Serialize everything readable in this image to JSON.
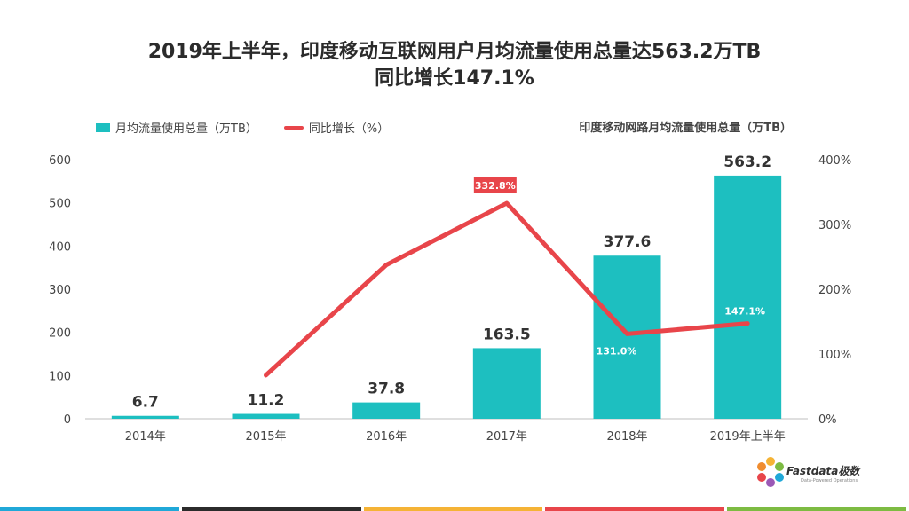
{
  "title_line1": "2019年上半年，印度移动互联网用户月均流量使用总量达563.2万TB",
  "title_line2": "同比增长147.1%",
  "subtitle": "印度移动网路月均流量使用总量（万TB）",
  "logo": {
    "name": "Fastdata极数",
    "tagline": "Data-Powered Operations"
  },
  "colors": {
    "bar": "#1dbfc0",
    "line": "#e8454a",
    "strip": [
      "#20a8d8",
      "#2b2b2b",
      "#f5b335",
      "#e8454a",
      "#7dbb42"
    ]
  },
  "chart_data": {
    "type": "bar+line",
    "categories": [
      "2014年",
      "2015年",
      "2016年",
      "2017年",
      "2018年",
      "2019年上半年"
    ],
    "series": [
      {
        "name": "月均流量使用总量（万TB）",
        "type": "bar",
        "axis": "left",
        "values": [
          6.7,
          11.2,
          37.8,
          163.5,
          377.6,
          563.2
        ],
        "labels": [
          "6.7",
          "11.2",
          "37.8",
          "163.5",
          "377.6",
          "563.2"
        ]
      },
      {
        "name": "同比增长（%）",
        "type": "line",
        "axis": "right",
        "values": [
          null,
          67.2,
          237.5,
          332.8,
          131.0,
          147.1
        ],
        "labels": [
          "",
          "",
          "",
          "332.8%",
          "131.0%",
          "147.1%"
        ]
      }
    ],
    "ylim_left": [
      0,
      600
    ],
    "yticks_left": [
      "0",
      "100",
      "200",
      "300",
      "400",
      "500",
      "600"
    ],
    "ylim_right": [
      0,
      400
    ],
    "yticks_right": [
      "0%",
      "100%",
      "200%",
      "300%",
      "400%"
    ],
    "grid": false,
    "legend_position": "top-left"
  }
}
